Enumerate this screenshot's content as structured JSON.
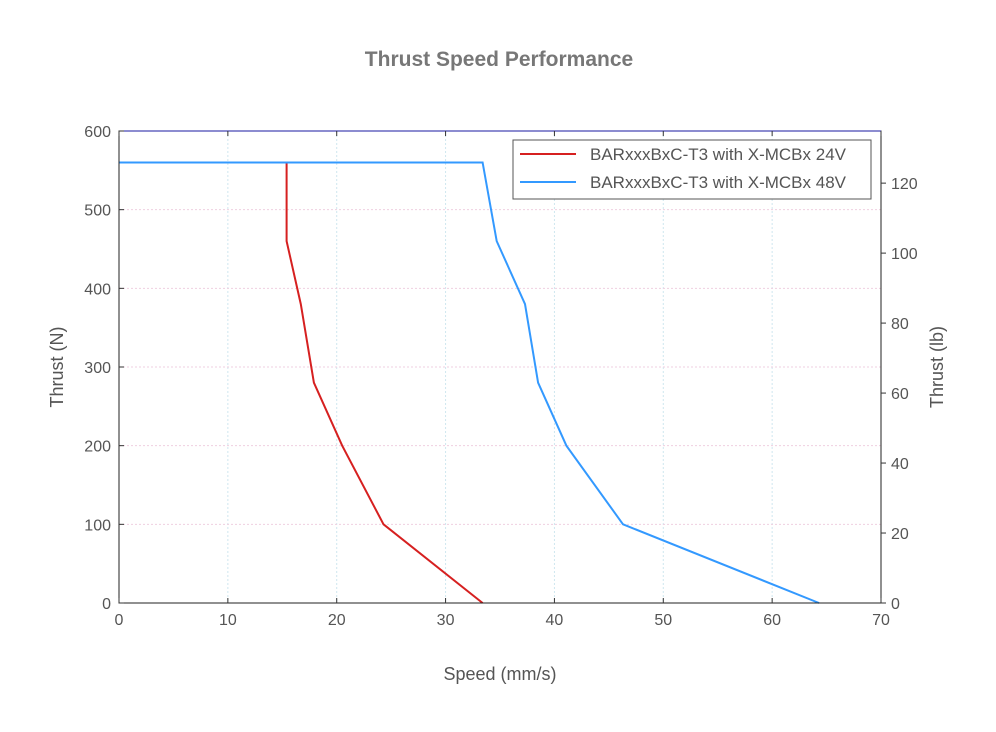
{
  "chart_data": {
    "type": "line",
    "title": "Thrust Speed Performance",
    "xlabel": "Speed (mm/s)",
    "ylabel": "Thrust (N)",
    "y2label": "Thrust (lb)",
    "xlim": [
      0,
      70
    ],
    "ylim": [
      0,
      600
    ],
    "y2lim": [
      0,
      134.9
    ],
    "xticks": [
      0,
      10,
      20,
      30,
      40,
      50,
      60,
      70
    ],
    "yticks": [
      0,
      100,
      200,
      300,
      400,
      500,
      600
    ],
    "y2ticks": [
      0,
      20,
      40,
      60,
      80,
      100,
      120
    ],
    "grid": true,
    "legend_position": "top-right",
    "series": [
      {
        "name": "BARxxxBxC-T3 with X-MCBx 24V",
        "color": "#d62020",
        "x": [
          0,
          15.4,
          15.4,
          16.7,
          17.9,
          20.5,
          24.3,
          33.4
        ],
        "y": [
          560,
          560,
          460,
          380,
          280,
          200,
          100,
          0
        ]
      },
      {
        "name": "BARxxxBxC-T3 with X-MCBx 48V",
        "color": "#3399ff",
        "x": [
          0,
          33.4,
          34.7,
          37.3,
          38.5,
          41.1,
          46.3,
          64.3
        ],
        "y": [
          560,
          560,
          460,
          380,
          280,
          200,
          100,
          0
        ]
      }
    ]
  }
}
